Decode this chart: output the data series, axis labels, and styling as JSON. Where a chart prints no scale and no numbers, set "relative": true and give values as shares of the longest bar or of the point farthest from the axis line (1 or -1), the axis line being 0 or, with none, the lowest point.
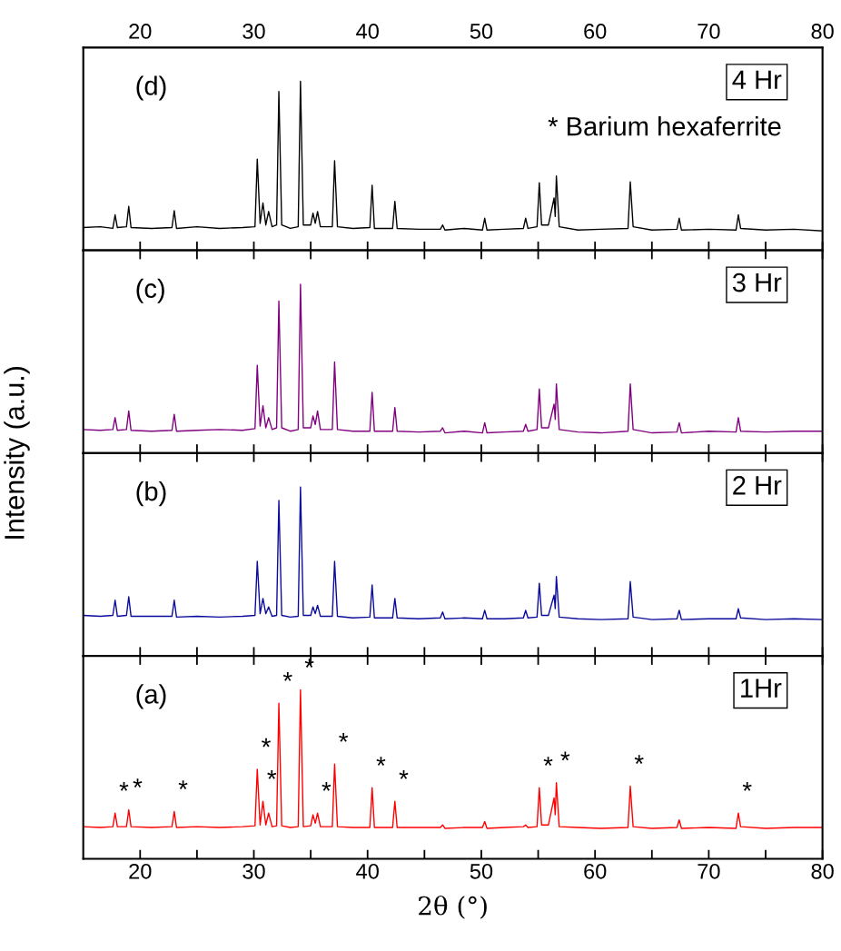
{
  "chart_data": [
    {
      "type": "line",
      "title": null,
      "ylabel": "Intensity (a.u.)",
      "relative": true,
      "xlim": [
        15,
        80
      ],
      "xticks": [
        20,
        {
          "value": 25,
          "label": null
        },
        30,
        {
          "value": 35,
          "label": null
        },
        40,
        {
          "value": 45,
          "label": null
        },
        50,
        {
          "value": 55,
          "label": null
        },
        60,
        {
          "value": 65,
          "label": null
        },
        70,
        {
          "value": 75,
          "label": null
        },
        80
      ],
      "x2lim": [
        15,
        80
      ],
      "x2ticks": [
        20,
        30,
        40,
        50,
        60,
        70,
        80
      ],
      "tick_labels": false,
      "x": [
        15,
        16.5,
        17.6,
        17.8,
        18.0,
        18.8,
        19.0,
        19.2,
        21,
        22.8,
        23.0,
        23.2,
        25,
        27,
        29,
        30.1,
        30.3,
        30.55,
        30.8,
        31.05,
        31.3,
        31.6,
        32.0,
        32.2,
        32.45,
        33.2,
        33.9,
        34.1,
        34.35,
        35.0,
        35.2,
        35.4,
        35.6,
        35.85,
        36.9,
        37.1,
        37.35,
        38.7,
        40.2,
        40.4,
        40.6,
        42.2,
        42.4,
        42.6,
        44.5,
        46.4,
        46.6,
        46.8,
        48.5,
        50.1,
        50.3,
        50.5,
        52,
        53.7,
        53.9,
        54.1,
        54.9,
        55.1,
        55.3,
        55.9,
        56.4,
        56.5,
        56.6,
        56.85,
        58.5,
        60.5,
        62.9,
        63.1,
        63.35,
        65,
        67.2,
        67.4,
        67.6,
        70,
        72.4,
        72.6,
        72.8,
        75,
        77.5,
        80
      ],
      "series": [
        {
          "color": "#000000",
          "values": [
            0.135,
            0.14,
            0.13,
            0.21,
            0.135,
            0.14,
            0.26,
            0.135,
            0.13,
            0.135,
            0.235,
            0.13,
            0.14,
            0.13,
            0.135,
            0.14,
            0.54,
            0.16,
            0.28,
            0.15,
            0.23,
            0.14,
            0.15,
            0.94,
            0.15,
            0.13,
            0.14,
            1.0,
            0.15,
            0.15,
            0.22,
            0.16,
            0.23,
            0.14,
            0.14,
            0.53,
            0.14,
            0.13,
            0.135,
            0.385,
            0.13,
            0.13,
            0.29,
            0.13,
            0.125,
            0.125,
            0.15,
            0.12,
            0.13,
            0.12,
            0.19,
            0.12,
            0.125,
            0.13,
            0.19,
            0.13,
            0.14,
            0.4,
            0.15,
            0.15,
            0.31,
            0.2,
            0.44,
            0.14,
            0.12,
            0.125,
            0.13,
            0.405,
            0.14,
            0.12,
            0.125,
            0.19,
            0.12,
            0.125,
            0.12,
            0.21,
            0.13,
            0.12,
            0.125,
            0.115
          ]
        }
      ],
      "annotations": [
        "(d)",
        "4 Hr",
        "* Barium hexaferrite"
      ]
    },
    {
      "type": "line",
      "relative": true,
      "xlim": [
        15,
        80
      ],
      "xticks": [
        20,
        {
          "value": 25,
          "label": null
        },
        30,
        {
          "value": 35,
          "label": null
        },
        40,
        {
          "value": 45,
          "label": null
        },
        50,
        {
          "value": 55,
          "label": null
        },
        60,
        {
          "value": 65,
          "label": null
        },
        70,
        {
          "value": 75,
          "label": null
        },
        80
      ],
      "tick_labels": false,
      "x": [
        15,
        16.5,
        17.6,
        17.8,
        18.0,
        18.8,
        19.0,
        19.2,
        21,
        22.8,
        23.0,
        23.2,
        25,
        27,
        29,
        30.1,
        30.3,
        30.55,
        30.8,
        31.05,
        31.3,
        31.6,
        32.0,
        32.2,
        32.45,
        33.2,
        33.9,
        34.1,
        34.35,
        35.0,
        35.2,
        35.4,
        35.6,
        35.85,
        36.9,
        37.1,
        37.35,
        38.7,
        40.2,
        40.4,
        40.6,
        42.2,
        42.4,
        42.6,
        44.5,
        46.4,
        46.6,
        46.8,
        48.5,
        50.1,
        50.3,
        50.5,
        52,
        53.7,
        53.9,
        54.1,
        54.9,
        55.1,
        55.3,
        55.9,
        56.4,
        56.5,
        56.6,
        56.85,
        58.5,
        60.5,
        62.9,
        63.1,
        63.35,
        65,
        67.2,
        67.4,
        67.6,
        70,
        72.4,
        72.6,
        72.8,
        75,
        77.5,
        80
      ],
      "series": [
        {
          "color": "#800080",
          "values": [
            0.14,
            0.135,
            0.14,
            0.21,
            0.135,
            0.14,
            0.25,
            0.135,
            0.13,
            0.135,
            0.23,
            0.13,
            0.135,
            0.14,
            0.135,
            0.145,
            0.52,
            0.16,
            0.28,
            0.15,
            0.21,
            0.14,
            0.15,
            0.9,
            0.15,
            0.13,
            0.14,
            1.0,
            0.15,
            0.15,
            0.22,
            0.17,
            0.25,
            0.14,
            0.14,
            0.54,
            0.14,
            0.13,
            0.13,
            0.36,
            0.13,
            0.13,
            0.27,
            0.13,
            0.125,
            0.13,
            0.15,
            0.12,
            0.13,
            0.12,
            0.18,
            0.12,
            0.125,
            0.13,
            0.17,
            0.13,
            0.14,
            0.38,
            0.15,
            0.15,
            0.29,
            0.2,
            0.41,
            0.14,
            0.125,
            0.12,
            0.13,
            0.41,
            0.14,
            0.12,
            0.125,
            0.18,
            0.12,
            0.13,
            0.125,
            0.21,
            0.13,
            0.125,
            0.13,
            0.13
          ]
        }
      ],
      "annotations": [
        "(c)",
        "3 Hr"
      ]
    },
    {
      "type": "line",
      "relative": true,
      "xlim": [
        15,
        80
      ],
      "xticks": [
        20,
        {
          "value": 25,
          "label": null
        },
        30,
        {
          "value": 35,
          "label": null
        },
        40,
        {
          "value": 45,
          "label": null
        },
        50,
        {
          "value": 55,
          "label": null
        },
        60,
        {
          "value": 65,
          "label": null
        },
        70,
        {
          "value": 75,
          "label": null
        },
        80
      ],
      "tick_labels": false,
      "x": [
        15,
        16.5,
        17.6,
        17.8,
        18.0,
        18.8,
        19.0,
        19.2,
        21,
        22.8,
        23.0,
        23.2,
        25,
        27,
        29,
        30.1,
        30.3,
        30.55,
        30.8,
        31.05,
        31.3,
        31.6,
        32.0,
        32.2,
        32.45,
        33.2,
        33.9,
        34.1,
        34.35,
        35.0,
        35.2,
        35.4,
        35.6,
        35.85,
        36.9,
        37.1,
        37.35,
        38.7,
        40.2,
        40.4,
        40.6,
        42.2,
        42.4,
        42.6,
        44.5,
        46.4,
        46.6,
        46.8,
        48.5,
        50.1,
        50.3,
        50.5,
        52,
        53.7,
        53.9,
        54.1,
        54.9,
        55.1,
        55.3,
        55.9,
        56.4,
        56.5,
        56.6,
        56.85,
        58.5,
        60.5,
        62.9,
        63.1,
        63.35,
        65,
        67.2,
        67.4,
        67.6,
        70,
        72.4,
        72.6,
        72.8,
        75,
        77.5,
        80
      ],
      "series": [
        {
          "color": "#0a0a9c",
          "values": [
            0.24,
            0.235,
            0.24,
            0.33,
            0.235,
            0.24,
            0.35,
            0.235,
            0.235,
            0.235,
            0.33,
            0.23,
            0.235,
            0.23,
            0.235,
            0.24,
            0.56,
            0.25,
            0.34,
            0.25,
            0.29,
            0.235,
            0.24,
            0.92,
            0.24,
            0.23,
            0.235,
            1.0,
            0.24,
            0.24,
            0.29,
            0.25,
            0.3,
            0.235,
            0.235,
            0.56,
            0.235,
            0.225,
            0.23,
            0.42,
            0.225,
            0.225,
            0.34,
            0.225,
            0.22,
            0.225,
            0.26,
            0.22,
            0.225,
            0.22,
            0.27,
            0.22,
            0.22,
            0.225,
            0.27,
            0.225,
            0.23,
            0.43,
            0.24,
            0.24,
            0.36,
            0.28,
            0.47,
            0.23,
            0.22,
            0.215,
            0.22,
            0.44,
            0.23,
            0.215,
            0.22,
            0.27,
            0.215,
            0.22,
            0.22,
            0.28,
            0.225,
            0.215,
            0.22,
            0.215
          ]
        }
      ],
      "annotations": [
        "(b)",
        "2 Hr"
      ]
    },
    {
      "type": "line",
      "relative": true,
      "xlabel": "2θ (°)",
      "xlim": [
        15,
        80
      ],
      "xticks": [
        20,
        {
          "value": 25,
          "label": null
        },
        30,
        {
          "value": 35,
          "label": null
        },
        40,
        {
          "value": 45,
          "label": null
        },
        50,
        {
          "value": 55,
          "label": null
        },
        60,
        {
          "value": 65,
          "label": null
        },
        70,
        {
          "value": 75,
          "label": null
        },
        80
      ],
      "tick_labels": "x",
      "x": [
        15,
        16.5,
        17.6,
        17.8,
        18.0,
        18.8,
        19.0,
        19.2,
        21,
        22.8,
        23.0,
        23.2,
        25,
        27,
        29,
        30.1,
        30.3,
        30.55,
        30.8,
        31.05,
        31.3,
        31.6,
        32.0,
        32.2,
        32.45,
        33.2,
        33.9,
        34.1,
        34.35,
        35.0,
        35.2,
        35.4,
        35.6,
        35.85,
        36.9,
        37.1,
        37.35,
        38.7,
        40.2,
        40.4,
        40.6,
        42.2,
        42.4,
        42.6,
        44.5,
        46.4,
        46.6,
        46.8,
        48.5,
        50.1,
        50.3,
        50.5,
        52,
        53.7,
        53.9,
        54.1,
        54.9,
        55.1,
        55.3,
        55.9,
        56.4,
        56.5,
        56.6,
        56.85,
        58.5,
        60.5,
        62.9,
        63.1,
        63.35,
        65,
        67.2,
        67.4,
        67.6,
        70,
        72.4,
        72.6,
        72.8,
        75,
        77.5,
        80
      ],
      "series": [
        {
          "color": "#ff0000",
          "values": [
            0.19,
            0.185,
            0.19,
            0.27,
            0.19,
            0.19,
            0.29,
            0.19,
            0.185,
            0.19,
            0.28,
            0.185,
            0.19,
            0.185,
            0.19,
            0.195,
            0.53,
            0.2,
            0.34,
            0.2,
            0.27,
            0.19,
            0.195,
            0.92,
            0.195,
            0.185,
            0.19,
            1.0,
            0.19,
            0.195,
            0.26,
            0.21,
            0.27,
            0.19,
            0.19,
            0.56,
            0.19,
            0.185,
            0.185,
            0.42,
            0.185,
            0.185,
            0.34,
            0.185,
            0.185,
            0.185,
            0.2,
            0.18,
            0.185,
            0.185,
            0.22,
            0.18,
            0.185,
            0.19,
            0.2,
            0.185,
            0.19,
            0.42,
            0.2,
            0.2,
            0.36,
            0.26,
            0.45,
            0.19,
            0.185,
            0.18,
            0.185,
            0.43,
            0.19,
            0.18,
            0.185,
            0.23,
            0.18,
            0.185,
            0.18,
            0.27,
            0.19,
            0.18,
            0.185,
            0.185
          ]
        }
      ],
      "annotations": [
        "(a)",
        "1Hr",
        {
          "text": "*",
          "x": 17.8,
          "y": 0.27
        },
        {
          "text": "*",
          "x": 19.0,
          "y": 0.29
        },
        {
          "text": "*",
          "x": 23.0,
          "y": 0.28
        },
        {
          "text": "*",
          "x": 30.3,
          "y": 0.53
        },
        {
          "text": "*",
          "x": 30.8,
          "y": 0.34
        },
        {
          "text": "*",
          "x": 32.2,
          "y": 0.92
        },
        {
          "text": "*",
          "x": 34.1,
          "y": 1.0
        },
        {
          "text": "*",
          "x": 35.6,
          "y": 0.27
        },
        {
          "text": "*",
          "x": 37.1,
          "y": 0.56
        },
        {
          "text": "*",
          "x": 40.4,
          "y": 0.42
        },
        {
          "text": "*",
          "x": 42.4,
          "y": 0.34
        },
        {
          "text": "*",
          "x": 55.1,
          "y": 0.42
        },
        {
          "text": "*",
          "x": 56.6,
          "y": 0.45
        },
        {
          "text": "*",
          "x": 63.1,
          "y": 0.43
        },
        {
          "text": "*",
          "x": 72.6,
          "y": 0.27
        }
      ]
    }
  ]
}
